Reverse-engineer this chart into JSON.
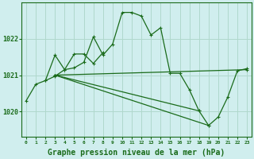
{
  "background_color": "#d0eeee",
  "grid_color": "#b0d8cc",
  "line_color": "#1a6b1a",
  "xlabel": "Graphe pression niveau de la mer (hPa)",
  "xlabel_fontsize": 7,
  "yticks": [
    1020,
    1021,
    1022
  ],
  "ylim": [
    1019.3,
    1023.0
  ],
  "xlim": [
    -0.5,
    23.5
  ],
  "series": [
    {
      "x": [
        0,
        1,
        2,
        3,
        4,
        5,
        6,
        7,
        8,
        9,
        10,
        11,
        12,
        13,
        14,
        15,
        16,
        17,
        18,
        19,
        20,
        21,
        22,
        23
      ],
      "y": [
        1020.3,
        1020.75,
        1020.85,
        1020.97,
        1021.15,
        1021.2,
        1021.35,
        1022.05,
        1021.55,
        1021.85,
        1022.72,
        1022.72,
        1022.62,
        1022.1,
        1022.3,
        1021.05,
        1021.05,
        1020.6,
        1020.02,
        1019.62,
        1019.85,
        1020.4,
        1021.12,
        1021.18
      ]
    },
    {
      "x": [
        2,
        3,
        4,
        5,
        6,
        7,
        8
      ],
      "y": [
        1020.85,
        1021.55,
        1021.15,
        1021.58,
        1021.58,
        1021.32,
        1021.62
      ]
    },
    {
      "x": [
        3,
        23
      ],
      "y": [
        1021.0,
        1021.15
      ]
    },
    {
      "x": [
        3,
        19
      ],
      "y": [
        1021.0,
        1019.62
      ]
    },
    {
      "x": [
        3,
        18
      ],
      "y": [
        1021.0,
        1020.02
      ]
    }
  ]
}
